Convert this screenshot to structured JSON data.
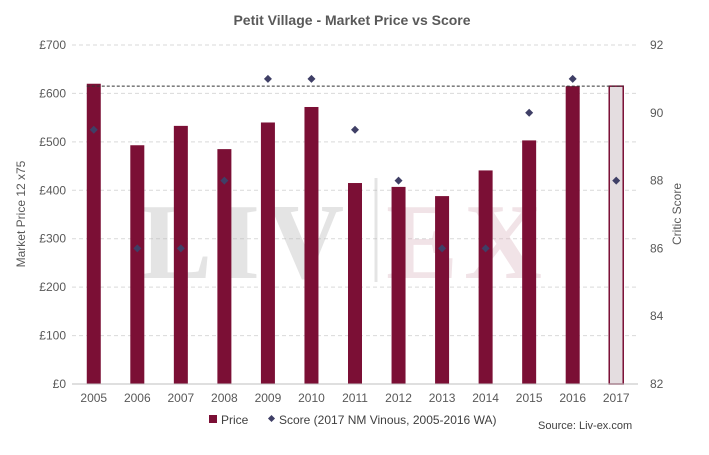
{
  "chart_data": {
    "type": "bar",
    "title": "Petit Village - Market Price vs Score",
    "categories": [
      "2005",
      "2006",
      "2007",
      "2008",
      "2009",
      "2010",
      "2011",
      "2012",
      "2013",
      "2014",
      "2015",
      "2016",
      "2017"
    ],
    "series": [
      {
        "name": "Price",
        "axis": "left",
        "type": "bar",
        "color": "#7b0f35",
        "values": [
          620,
          493,
          533,
          485,
          540,
          572,
          415,
          407,
          388,
          441,
          503,
          615,
          615
        ],
        "styles": [
          "solid",
          "solid",
          "solid",
          "solid",
          "solid",
          "solid",
          "solid",
          "solid",
          "solid",
          "solid",
          "solid",
          "solid",
          "outlined"
        ]
      },
      {
        "name": "Score (2017 NM Vinous, 2005-2016 WA)",
        "axis": "right",
        "type": "scatter",
        "marker": "diamond",
        "color": "#3f3f66",
        "values": [
          89.5,
          86,
          86,
          88,
          91,
          91,
          89.5,
          88,
          86,
          86,
          90,
          91,
          88
        ]
      }
    ],
    "ylabel": "Market Price 12 x75",
    "y2label": "Critic Score",
    "ylim": [
      0,
      700
    ],
    "y2lim": [
      82,
      92
    ],
    "yticks": [
      "£0",
      "£100",
      "£200",
      "£300",
      "£400",
      "£500",
      "£600",
      "£700"
    ],
    "y2ticks": [
      "82",
      "84",
      "86",
      "88",
      "90",
      "92"
    ],
    "reference_line": {
      "value": 615,
      "style": "dashed"
    },
    "grid": true,
    "legend_position": "bottom",
    "legend": [
      {
        "label": "Price",
        "symbol": "square"
      },
      {
        "label": "Score (2017 NM Vinous, 2005-2016 WA)",
        "symbol": "diamond"
      }
    ],
    "source": "Source: Liv-ex.com",
    "watermark": "LIV|EX"
  }
}
